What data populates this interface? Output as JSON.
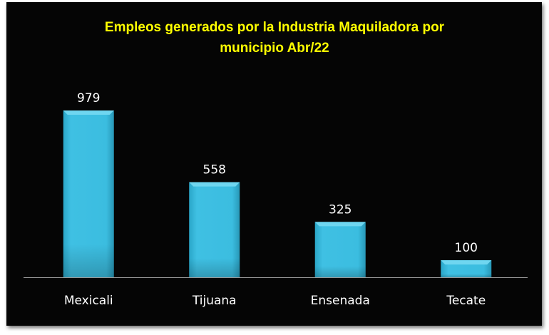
{
  "chart_data": {
    "type": "bar",
    "title_lines": [
      "Empleos generados por la Industria Maquiladora por",
      "municipio Abr/22"
    ],
    "categories": [
      "Mexicali",
      "Tijuana",
      "Ensenada",
      "Tecate"
    ],
    "values": [
      979,
      558,
      325,
      100
    ],
    "data_labels": [
      "979",
      "558",
      "325",
      "100"
    ],
    "xlabel": "",
    "ylabel": "",
    "ylim": [
      0,
      979
    ],
    "grid": false,
    "legend": "none",
    "colors": {
      "bar": "#3bbde0",
      "background": "#050505",
      "title": "#ffff00",
      "text": "#ffffff",
      "axis": "#9a9a9a"
    }
  }
}
